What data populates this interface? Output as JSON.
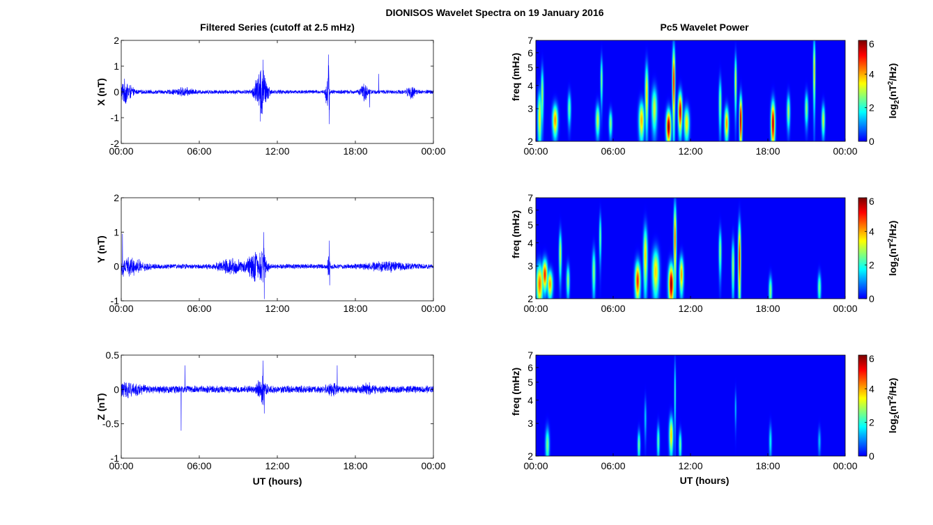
{
  "figure_title": "DIONISOS Wavelet Spectra on 19 January 2016",
  "chart_data": [
    {
      "type": "line",
      "title": "Filtered Series (cutoff at 2.5 mHz)",
      "xlabel": "",
      "ylabel": "X (nT)",
      "x_ticks": [
        "00:00",
        "06:00",
        "12:00",
        "18:00",
        "00:00"
      ],
      "xlim_hours": [
        0,
        24
      ],
      "ylim": [
        -2,
        2
      ],
      "y_ticks": [
        "-2",
        "-1",
        "0",
        "1",
        "2"
      ],
      "series_color": "#0000ff",
      "envelope": {
        "baseline": 0.09,
        "bursts": [
          {
            "t": 0.3,
            "a": 0.45,
            "w": 0.5
          },
          {
            "t": 4.8,
            "a": 0.12,
            "w": 0.7
          },
          {
            "t": 10.5,
            "a": 0.65,
            "w": 0.3
          },
          {
            "t": 10.8,
            "a": 0.9,
            "w": 0.15
          },
          {
            "t": 11.1,
            "a": 0.6,
            "w": 0.25
          },
          {
            "t": 15.8,
            "a": 0.55,
            "w": 0.1
          },
          {
            "t": 15.95,
            "a": 1.2,
            "w": 0.06
          },
          {
            "t": 18.7,
            "a": 0.3,
            "w": 0.3
          },
          {
            "t": 22.3,
            "a": 0.25,
            "w": 0.3
          }
        ],
        "spikes": [
          {
            "t": 15.93,
            "v": 1.45
          },
          {
            "t": 16.0,
            "v": -1.25
          },
          {
            "t": 10.9,
            "v": 1.25
          },
          {
            "t": 10.7,
            "v": -1.15
          },
          {
            "t": 19.1,
            "v": -0.6
          },
          {
            "t": 19.8,
            "v": 0.7
          }
        ]
      }
    },
    {
      "type": "line",
      "title": "",
      "xlabel": "",
      "ylabel": "Y (nT)",
      "x_ticks": [
        "00:00",
        "06:00",
        "12:00",
        "18:00",
        "00:00"
      ],
      "xlim_hours": [
        0,
        24
      ],
      "ylim": [
        -1,
        2
      ],
      "y_ticks": [
        "-1",
        "0",
        "1",
        "2"
      ],
      "series_color": "#0000ff",
      "envelope": {
        "baseline": 0.08,
        "bursts": [
          {
            "t": 0.5,
            "a": 0.25,
            "w": 1.2
          },
          {
            "t": 8.5,
            "a": 0.2,
            "w": 1.0
          },
          {
            "t": 10.2,
            "a": 0.4,
            "w": 0.5
          },
          {
            "t": 10.9,
            "a": 0.55,
            "w": 0.3
          },
          {
            "t": 15.95,
            "a": 0.4,
            "w": 0.08
          },
          {
            "t": 20.5,
            "a": 0.12,
            "w": 1.5
          }
        ],
        "spikes": [
          {
            "t": 10.95,
            "v": 1.0
          },
          {
            "t": 11.0,
            "v": -0.95
          },
          {
            "t": 16.0,
            "v": 0.75
          },
          {
            "t": 16.02,
            "v": -0.55
          },
          {
            "t": 0.1,
            "v": 0.95
          }
        ]
      }
    },
    {
      "type": "line",
      "title": "",
      "xlabel": "UT (hours)",
      "ylabel": "Z (nT)",
      "x_ticks": [
        "00:00",
        "06:00",
        "12:00",
        "18:00",
        "00:00"
      ],
      "xlim_hours": [
        0,
        24
      ],
      "ylim": [
        -1,
        0.5
      ],
      "y_ticks": [
        "-1",
        "-0.5",
        "0",
        "0.5"
      ],
      "series_color": "#0000ff",
      "envelope": {
        "baseline": 0.06,
        "bursts": [
          {
            "t": 0.5,
            "a": 0.08,
            "w": 1.0
          },
          {
            "t": 10.8,
            "a": 0.22,
            "w": 0.3
          },
          {
            "t": 16.2,
            "a": 0.06,
            "w": 0.4
          },
          {
            "t": 18.9,
            "a": 0.06,
            "w": 0.5
          }
        ],
        "spikes": [
          {
            "t": 4.6,
            "v": -0.6
          },
          {
            "t": 4.9,
            "v": 0.35
          },
          {
            "t": 10.9,
            "v": 0.42
          },
          {
            "t": 11.0,
            "v": -0.35
          },
          {
            "t": 16.6,
            "v": 0.35
          }
        ]
      }
    },
    {
      "type": "heatmap",
      "title": "Pc5 Wavelet Power",
      "xlabel": "",
      "ylabel": "freq (mHz)",
      "x_ticks": [
        "00:00",
        "06:00",
        "12:00",
        "18:00",
        "00:00"
      ],
      "xlim_hours": [
        0,
        24
      ],
      "ylim_mHz": [
        2,
        7
      ],
      "y_scale": "log",
      "y_ticks": [
        "2",
        "3",
        "4",
        "5",
        "6",
        "7"
      ],
      "colorbar": {
        "label": "log2(nT²/Hz)",
        "label_base": "log",
        "label_sub": "2",
        "label_rest": "(nT",
        "label_sup": "2",
        "label_end": "/Hz)",
        "range": [
          0,
          6
        ],
        "ticks": [
          "0",
          "2",
          "4",
          "6"
        ]
      },
      "blobs": [
        {
          "t": 0.3,
          "f": 2.7,
          "p": 3.5,
          "wt": 0.15,
          "wf": 0.9
        },
        {
          "t": 0.5,
          "f": 3.6,
          "p": 3.0,
          "wt": 0.1,
          "wf": 1.2
        },
        {
          "t": 1.5,
          "f": 2.6,
          "p": 4.2,
          "wt": 0.2,
          "wf": 0.5
        },
        {
          "t": 2.6,
          "f": 3.0,
          "p": 2.5,
          "wt": 0.12,
          "wf": 0.6
        },
        {
          "t": 4.8,
          "f": 2.6,
          "p": 3.2,
          "wt": 0.15,
          "wf": 0.5
        },
        {
          "t": 5.1,
          "f": 4.3,
          "p": 2.8,
          "wt": 0.08,
          "wf": 1.2
        },
        {
          "t": 5.8,
          "f": 2.5,
          "p": 2.8,
          "wt": 0.12,
          "wf": 0.4
        },
        {
          "t": 8.2,
          "f": 2.6,
          "p": 4.0,
          "wt": 0.2,
          "wf": 0.6
        },
        {
          "t": 8.6,
          "f": 3.6,
          "p": 3.8,
          "wt": 0.12,
          "wf": 1.4
        },
        {
          "t": 9.2,
          "f": 3.0,
          "p": 3.2,
          "wt": 0.2,
          "wf": 0.8
        },
        {
          "t": 10.3,
          "f": 2.4,
          "p": 6.0,
          "wt": 0.18,
          "wf": 0.5
        },
        {
          "t": 10.7,
          "f": 4.2,
          "p": 5.2,
          "wt": 0.1,
          "wf": 2.0
        },
        {
          "t": 11.2,
          "f": 2.9,
          "p": 5.6,
          "wt": 0.15,
          "wf": 0.7
        },
        {
          "t": 11.7,
          "f": 2.5,
          "p": 3.6,
          "wt": 0.2,
          "wf": 0.5
        },
        {
          "t": 14.3,
          "f": 3.2,
          "p": 2.8,
          "wt": 0.1,
          "wf": 1.0
        },
        {
          "t": 14.8,
          "f": 2.5,
          "p": 4.3,
          "wt": 0.15,
          "wf": 0.5
        },
        {
          "t": 15.9,
          "f": 2.6,
          "p": 6.0,
          "wt": 0.1,
          "wf": 0.8
        },
        {
          "t": 15.5,
          "f": 4.2,
          "p": 3.5,
          "wt": 0.08,
          "wf": 1.4
        },
        {
          "t": 18.4,
          "f": 2.5,
          "p": 5.8,
          "wt": 0.15,
          "wf": 0.7
        },
        {
          "t": 19.6,
          "f": 2.9,
          "p": 3.0,
          "wt": 0.12,
          "wf": 0.6
        },
        {
          "t": 21.0,
          "f": 3.0,
          "p": 2.8,
          "wt": 0.12,
          "wf": 0.6
        },
        {
          "t": 21.6,
          "f": 4.8,
          "p": 3.8,
          "wt": 0.08,
          "wf": 2.0
        },
        {
          "t": 22.3,
          "f": 2.6,
          "p": 3.2,
          "wt": 0.12,
          "wf": 0.5
        }
      ]
    },
    {
      "type": "heatmap",
      "title": "",
      "xlabel": "",
      "ylabel": "freq (mHz)",
      "x_ticks": [
        "00:00",
        "06:00",
        "12:00",
        "18:00",
        "00:00"
      ],
      "xlim_hours": [
        0,
        24
      ],
      "ylim_mHz": [
        2,
        7
      ],
      "y_scale": "log",
      "y_ticks": [
        "2",
        "3",
        "4",
        "5",
        "6",
        "7"
      ],
      "colorbar": {
        "label": "log2(nT²/Hz)",
        "label_base": "log",
        "label_sub": "2",
        "label_rest": "(nT",
        "label_sup": "2",
        "label_end": "/Hz)",
        "range": [
          0,
          6
        ],
        "ticks": [
          "0",
          "2",
          "4",
          "6"
        ]
      },
      "blobs": [
        {
          "t": 0.3,
          "f": 2.4,
          "p": 4.5,
          "wt": 0.25,
          "wf": 0.6
        },
        {
          "t": 0.7,
          "f": 2.7,
          "p": 5.0,
          "wt": 0.2,
          "wf": 0.5
        },
        {
          "t": 1.1,
          "f": 2.4,
          "p": 4.2,
          "wt": 0.2,
          "wf": 0.4
        },
        {
          "t": 1.9,
          "f": 3.5,
          "p": 3.2,
          "wt": 0.1,
          "wf": 1.0
        },
        {
          "t": 2.5,
          "f": 2.5,
          "p": 2.8,
          "wt": 0.12,
          "wf": 0.5
        },
        {
          "t": 4.5,
          "f": 2.8,
          "p": 2.8,
          "wt": 0.12,
          "wf": 0.8
        },
        {
          "t": 5.0,
          "f": 4.3,
          "p": 2.6,
          "wt": 0.08,
          "wf": 1.2
        },
        {
          "t": 7.9,
          "f": 2.5,
          "p": 5.0,
          "wt": 0.2,
          "wf": 0.6
        },
        {
          "t": 8.5,
          "f": 3.4,
          "p": 3.8,
          "wt": 0.15,
          "wf": 1.3
        },
        {
          "t": 9.3,
          "f": 2.8,
          "p": 3.8,
          "wt": 0.25,
          "wf": 0.8
        },
        {
          "t": 10.5,
          "f": 2.4,
          "p": 6.0,
          "wt": 0.2,
          "wf": 0.6
        },
        {
          "t": 10.8,
          "f": 4.2,
          "p": 4.6,
          "wt": 0.1,
          "wf": 2.0
        },
        {
          "t": 11.3,
          "f": 2.7,
          "p": 4.2,
          "wt": 0.15,
          "wf": 0.6
        },
        {
          "t": 14.3,
          "f": 3.6,
          "p": 2.8,
          "wt": 0.1,
          "wf": 1.0
        },
        {
          "t": 15.3,
          "f": 3.0,
          "p": 3.0,
          "wt": 0.1,
          "wf": 1.0
        },
        {
          "t": 15.8,
          "f": 3.3,
          "p": 5.2,
          "wt": 0.1,
          "wf": 1.6
        },
        {
          "t": 18.2,
          "f": 2.2,
          "p": 2.8,
          "wt": 0.12,
          "wf": 0.4
        },
        {
          "t": 22.0,
          "f": 2.3,
          "p": 2.6,
          "wt": 0.12,
          "wf": 0.4
        }
      ]
    },
    {
      "type": "heatmap",
      "title": "",
      "xlabel": "UT (hours)",
      "ylabel": "freq (mHz)",
      "x_ticks": [
        "00:00",
        "06:00",
        "12:00",
        "18:00",
        "00:00"
      ],
      "xlim_hours": [
        0,
        24
      ],
      "ylim_mHz": [
        2,
        7
      ],
      "y_scale": "log",
      "y_ticks": [
        "2",
        "3",
        "4",
        "5",
        "6",
        "7"
      ],
      "colorbar": {
        "label": "log2(nT²/Hz)",
        "label_base": "log",
        "label_sub": "2",
        "label_rest": "(nT",
        "label_sup": "2",
        "label_end": "/Hz)",
        "range": [
          0,
          6
        ],
        "ticks": [
          "0",
          "2",
          "4",
          "6"
        ]
      },
      "blobs": [
        {
          "t": 0.9,
          "f": 2.3,
          "p": 2.6,
          "wt": 0.15,
          "wf": 0.5
        },
        {
          "t": 8.0,
          "f": 2.3,
          "p": 2.6,
          "wt": 0.1,
          "wf": 0.4
        },
        {
          "t": 8.5,
          "f": 3.2,
          "p": 1.5,
          "wt": 0.08,
          "wf": 0.8
        },
        {
          "t": 9.5,
          "f": 2.4,
          "p": 2.4,
          "wt": 0.1,
          "wf": 0.5
        },
        {
          "t": 10.5,
          "f": 2.6,
          "p": 3.8,
          "wt": 0.15,
          "wf": 0.6
        },
        {
          "t": 10.8,
          "f": 4.3,
          "p": 2.2,
          "wt": 0.06,
          "wf": 2.0
        },
        {
          "t": 11.2,
          "f": 2.3,
          "p": 2.6,
          "wt": 0.1,
          "wf": 0.4
        },
        {
          "t": 15.5,
          "f": 3.6,
          "p": 1.5,
          "wt": 0.06,
          "wf": 0.8
        },
        {
          "t": 18.2,
          "f": 2.4,
          "p": 1.8,
          "wt": 0.1,
          "wf": 0.5
        },
        {
          "t": 22.0,
          "f": 2.4,
          "p": 1.4,
          "wt": 0.1,
          "wf": 0.4
        }
      ]
    }
  ]
}
